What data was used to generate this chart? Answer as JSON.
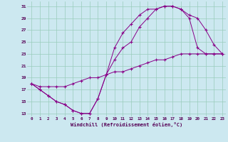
{
  "xlabel": "Windchill (Refroidissement éolien,°C)",
  "background_color": "#cce8f0",
  "grid_color": "#99ccbb",
  "line_color": "#880088",
  "xlim_min": -0.5,
  "xlim_max": 23.4,
  "ylim_min": 12.5,
  "ylim_max": 31.8,
  "xticks": [
    0,
    1,
    2,
    3,
    4,
    5,
    6,
    7,
    8,
    9,
    10,
    11,
    12,
    13,
    14,
    15,
    16,
    17,
    18,
    19,
    20,
    21,
    22,
    23
  ],
  "yticks": [
    13,
    15,
    17,
    19,
    21,
    23,
    25,
    27,
    29,
    31
  ],
  "curve1_x": [
    0,
    1,
    2,
    3,
    4,
    5,
    6,
    7,
    8,
    9,
    10,
    11,
    12,
    13,
    14,
    15,
    16,
    17,
    18,
    19,
    20,
    21,
    22,
    23
  ],
  "curve1_y": [
    18,
    17,
    16,
    15,
    14.5,
    13.5,
    13,
    13,
    15.5,
    19.5,
    24,
    26.5,
    28,
    29.5,
    30.5,
    30.5,
    31,
    31,
    30.5,
    29.5,
    29,
    27,
    24.5,
    23
  ],
  "curve2_x": [
    0,
    1,
    2,
    3,
    4,
    5,
    6,
    7,
    8,
    9,
    10,
    11,
    12,
    13,
    14,
    15,
    16,
    17,
    18,
    19,
    20,
    21,
    22,
    23
  ],
  "curve2_y": [
    18,
    17,
    16,
    15,
    14.5,
    13.5,
    13,
    13,
    15.5,
    19.5,
    22,
    24,
    25,
    27.5,
    29,
    30.5,
    31,
    31,
    30.5,
    29,
    24,
    23,
    23,
    23
  ],
  "curve3_x": [
    0,
    1,
    2,
    3,
    4,
    5,
    6,
    7,
    8,
    9,
    10,
    11,
    12,
    13,
    14,
    15,
    16,
    17,
    18,
    19,
    20,
    21,
    22,
    23
  ],
  "curve3_y": [
    18,
    17.5,
    17.5,
    17.5,
    17.5,
    18,
    18.5,
    19,
    19,
    19.5,
    20,
    20,
    20.5,
    21,
    21.5,
    22,
    22,
    22.5,
    23,
    23,
    23,
    23,
    23,
    23
  ]
}
